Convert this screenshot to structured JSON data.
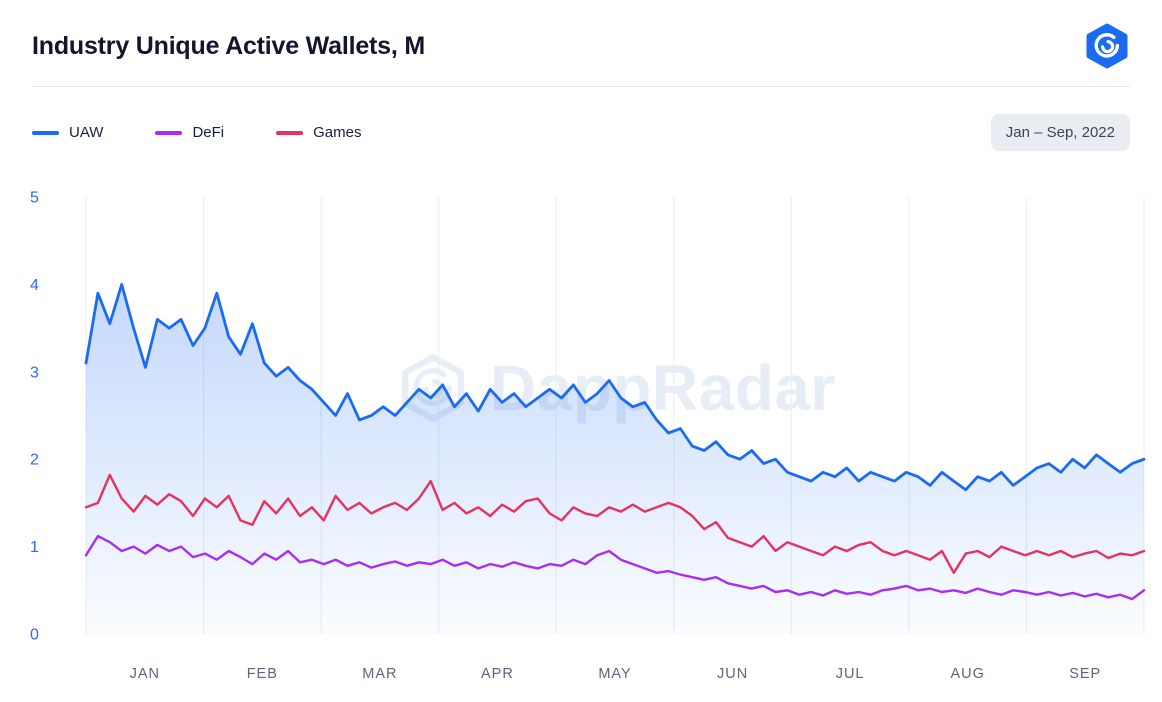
{
  "header": {
    "title": "Industry Unique Active Wallets, M"
  },
  "range_badge": "Jan – Sep, 2022",
  "watermark": "DappRadar",
  "chart_data": {
    "type": "line",
    "title": "Industry Unique Active Wallets, M",
    "x_unit": "date (Jan – Sep 2022, ~3-day sampling)",
    "categories": [
      "JAN",
      "FEB",
      "MAR",
      "APR",
      "MAY",
      "JUN",
      "JUL",
      "AUG",
      "SEP"
    ],
    "ylim": [
      0,
      5
    ],
    "yticks": [
      0,
      1,
      2,
      3,
      4,
      5
    ],
    "grid": "vertical lines at month boundaries",
    "legend_position": "top-left",
    "area_fill_under": "UAW",
    "colors": {
      "grid": "#e9edf3",
      "axis_y": "#2b6bf3",
      "axis_x": "#5c6678"
    },
    "series": [
      {
        "name": "UAW",
        "color": "#1b6bf2",
        "values": [
          3.1,
          3.9,
          3.55,
          4.0,
          3.5,
          3.05,
          3.6,
          3.5,
          3.6,
          3.3,
          3.5,
          3.9,
          3.4,
          3.2,
          3.55,
          3.1,
          2.95,
          3.05,
          2.9,
          2.8,
          2.65,
          2.5,
          2.75,
          2.45,
          2.5,
          2.6,
          2.5,
          2.65,
          2.8,
          2.7,
          2.85,
          2.6,
          2.75,
          2.55,
          2.8,
          2.65,
          2.75,
          2.6,
          2.7,
          2.8,
          2.7,
          2.85,
          2.65,
          2.75,
          2.9,
          2.7,
          2.6,
          2.65,
          2.45,
          2.3,
          2.35,
          2.15,
          2.1,
          2.2,
          2.05,
          2.0,
          2.1,
          1.95,
          2.0,
          1.85,
          1.8,
          1.75,
          1.85,
          1.8,
          1.9,
          1.75,
          1.85,
          1.8,
          1.75,
          1.85,
          1.8,
          1.7,
          1.85,
          1.75,
          1.65,
          1.8,
          1.75,
          1.85,
          1.7,
          1.8,
          1.9,
          1.95,
          1.85,
          2.0,
          1.9,
          2.05,
          1.95,
          1.85,
          1.95,
          2.0
        ]
      },
      {
        "name": "DeFi",
        "color": "#a92df2",
        "values": [
          0.9,
          1.12,
          1.05,
          0.95,
          1.0,
          0.92,
          1.02,
          0.95,
          1.0,
          0.88,
          0.92,
          0.85,
          0.95,
          0.88,
          0.8,
          0.92,
          0.85,
          0.95,
          0.82,
          0.85,
          0.8,
          0.85,
          0.78,
          0.82,
          0.76,
          0.8,
          0.83,
          0.78,
          0.82,
          0.8,
          0.85,
          0.78,
          0.82,
          0.75,
          0.8,
          0.77,
          0.82,
          0.78,
          0.75,
          0.8,
          0.78,
          0.85,
          0.8,
          0.9,
          0.95,
          0.85,
          0.8,
          0.75,
          0.7,
          0.72,
          0.68,
          0.65,
          0.62,
          0.65,
          0.58,
          0.55,
          0.52,
          0.55,
          0.48,
          0.5,
          0.45,
          0.48,
          0.44,
          0.5,
          0.46,
          0.48,
          0.45,
          0.5,
          0.52,
          0.55,
          0.5,
          0.52,
          0.48,
          0.5,
          0.47,
          0.52,
          0.48,
          0.45,
          0.5,
          0.48,
          0.45,
          0.48,
          0.44,
          0.47,
          0.43,
          0.46,
          0.42,
          0.45,
          0.4,
          0.5
        ]
      },
      {
        "name": "Games",
        "color": "#e7315f",
        "values": [
          1.45,
          1.5,
          1.82,
          1.55,
          1.4,
          1.58,
          1.48,
          1.6,
          1.52,
          1.35,
          1.55,
          1.45,
          1.58,
          1.3,
          1.25,
          1.52,
          1.38,
          1.55,
          1.35,
          1.45,
          1.3,
          1.58,
          1.42,
          1.5,
          1.38,
          1.45,
          1.5,
          1.42,
          1.55,
          1.75,
          1.42,
          1.5,
          1.38,
          1.45,
          1.35,
          1.48,
          1.4,
          1.52,
          1.55,
          1.38,
          1.3,
          1.45,
          1.38,
          1.35,
          1.45,
          1.4,
          1.48,
          1.4,
          1.45,
          1.5,
          1.45,
          1.35,
          1.2,
          1.28,
          1.1,
          1.05,
          1.0,
          1.12,
          0.95,
          1.05,
          1.0,
          0.95,
          0.9,
          1.0,
          0.95,
          1.02,
          1.05,
          0.95,
          0.9,
          0.95,
          0.9,
          0.85,
          0.95,
          0.7,
          0.92,
          0.95,
          0.88,
          1.0,
          0.95,
          0.9,
          0.95,
          0.9,
          0.95,
          0.88,
          0.92,
          0.95,
          0.87,
          0.92,
          0.9,
          0.95
        ]
      }
    ]
  }
}
